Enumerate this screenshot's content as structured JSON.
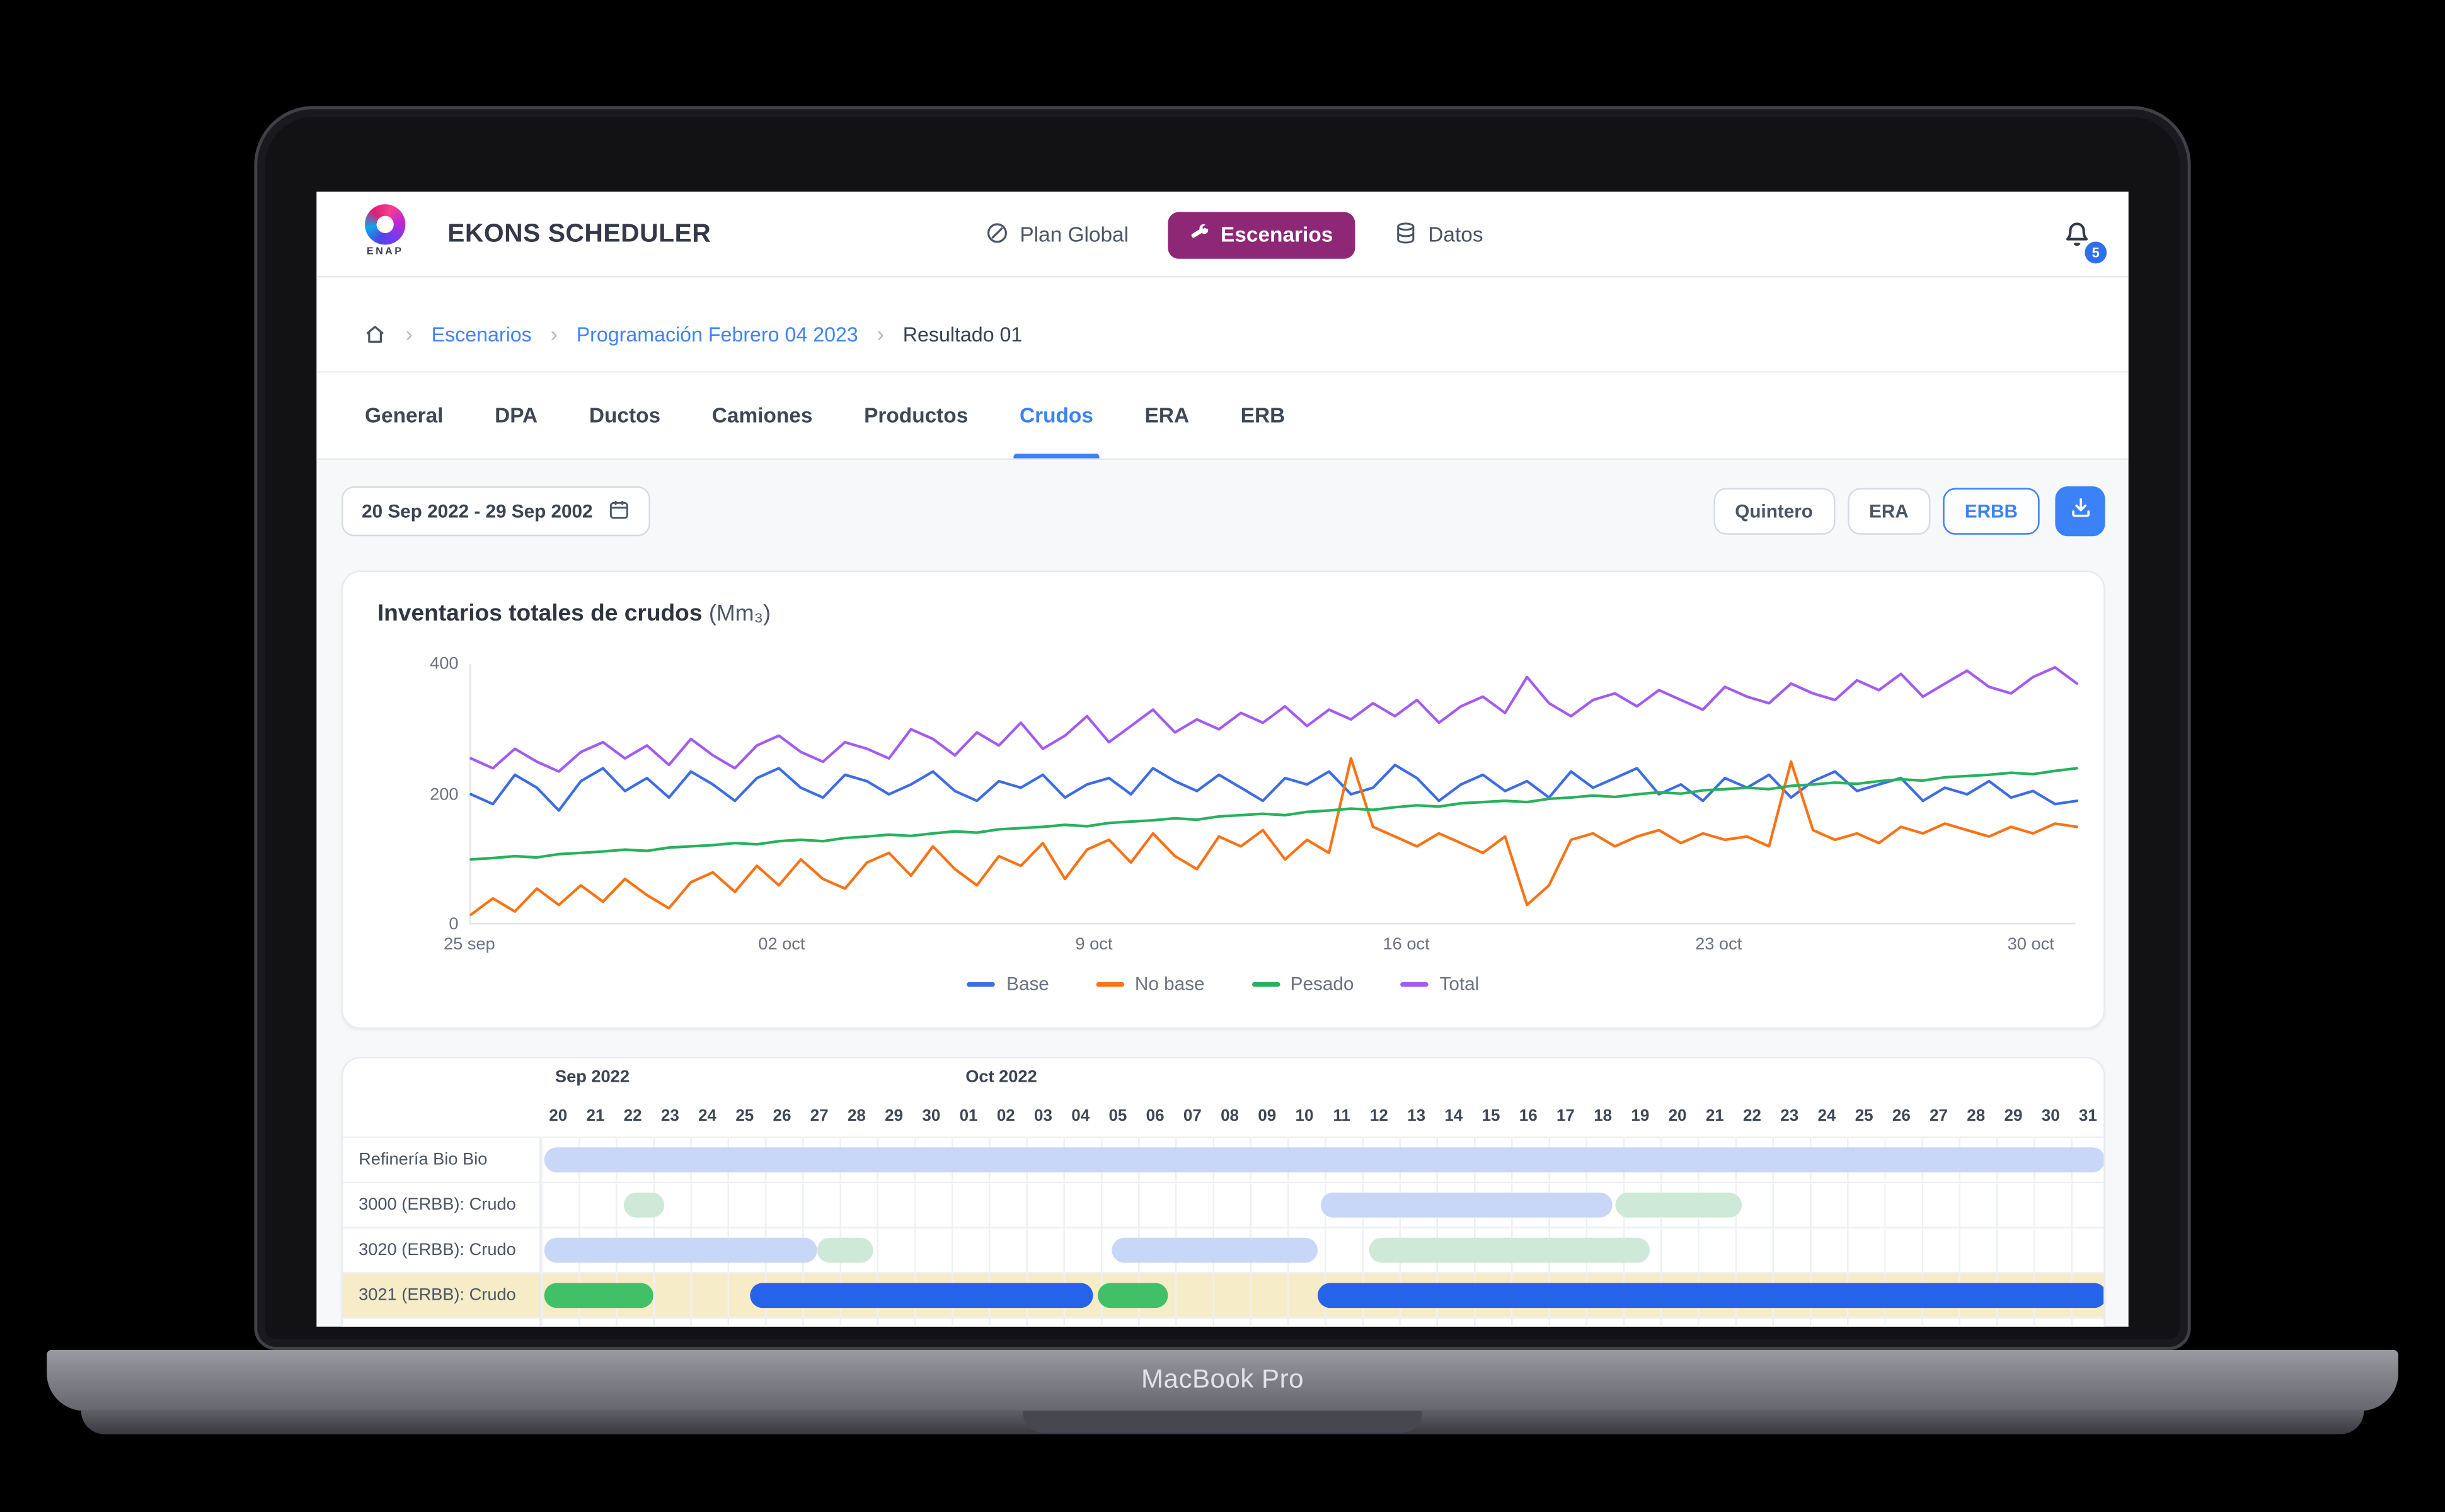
{
  "device": {
    "label": "MacBook Pro"
  },
  "navbar": {
    "logo_text": "ENAP",
    "brand": "EKONS SCHEDULER",
    "items": [
      {
        "label": "Plan Global",
        "icon": "plan-global-icon",
        "active": false
      },
      {
        "label": "Escenarios",
        "icon": "wrench-icon",
        "active": true
      },
      {
        "label": "Datos",
        "icon": "database-icon",
        "active": false
      }
    ],
    "notifications": "5"
  },
  "breadcrumb": {
    "items": [
      {
        "label": "Escenarios",
        "link": true
      },
      {
        "label": "Programación Febrero 04 2023",
        "link": true
      },
      {
        "label": "Resultado 01",
        "link": false
      }
    ]
  },
  "tabs": {
    "items": [
      "General",
      "DPA",
      "Ductos",
      "Camiones",
      "Productos",
      "Crudos",
      "ERA",
      "ERB"
    ],
    "active": "Crudos"
  },
  "toolbar": {
    "date_range": "20 Sep 2022 - 29 Sep 2002",
    "filters": [
      "Quintero",
      "ERA",
      "ERBB"
    ],
    "active_filter": "ERBB"
  },
  "chart_data": {
    "type": "line",
    "title": "Inventarios totales de crudos",
    "unit": "(Mm₃)",
    "ylim": [
      0,
      400
    ],
    "yticks": [
      400,
      200,
      0
    ],
    "x_domain_days": 36,
    "xticks": [
      {
        "label": "25 sep",
        "day": 0
      },
      {
        "label": "02 oct",
        "day": 7
      },
      {
        "label": "9 oct",
        "day": 14
      },
      {
        "label": "16 oct",
        "day": 21
      },
      {
        "label": "23 oct",
        "day": 28
      },
      {
        "label": "30 oct",
        "day": 35
      }
    ],
    "grid": false,
    "legend_position": "bottom",
    "series": [
      {
        "name": "Base",
        "color": "#3d6de4",
        "values": [
          200,
          185,
          230,
          210,
          175,
          220,
          240,
          205,
          225,
          195,
          235,
          215,
          190,
          225,
          240,
          210,
          195,
          230,
          220,
          200,
          215,
          235,
          205,
          190,
          220,
          210,
          230,
          195,
          215,
          225,
          200,
          240,
          220,
          205,
          230,
          210,
          190,
          225,
          215,
          235,
          200,
          210,
          245,
          225,
          190,
          215,
          230,
          205,
          220,
          195,
          235,
          210,
          225,
          240,
          200,
          215,
          190,
          225,
          210,
          230,
          195,
          220,
          235,
          205,
          215,
          225,
          190,
          210,
          200,
          220,
          195,
          205,
          185,
          190
        ]
      },
      {
        "name": "No base",
        "color": "#f97316",
        "values": [
          15,
          40,
          20,
          55,
          30,
          60,
          35,
          70,
          45,
          25,
          65,
          80,
          50,
          90,
          60,
          100,
          70,
          55,
          95,
          110,
          75,
          120,
          85,
          60,
          105,
          90,
          125,
          70,
          115,
          130,
          95,
          140,
          105,
          85,
          135,
          120,
          145,
          100,
          130,
          110,
          255,
          150,
          135,
          120,
          140,
          125,
          110,
          135,
          30,
          60,
          130,
          140,
          120,
          135,
          145,
          125,
          140,
          130,
          135,
          120,
          250,
          145,
          130,
          140,
          125,
          150,
          140,
          155,
          145,
          135,
          150,
          140,
          155,
          150
        ]
      },
      {
        "name": "Pesado",
        "color": "#27b15c",
        "values": [
          100,
          102,
          105,
          103,
          108,
          110,
          112,
          115,
          113,
          118,
          120,
          122,
          125,
          123,
          128,
          130,
          128,
          133,
          135,
          138,
          136,
          140,
          143,
          141,
          146,
          148,
          150,
          153,
          151,
          156,
          158,
          160,
          163,
          161,
          166,
          168,
          170,
          168,
          173,
          175,
          178,
          176,
          180,
          183,
          181,
          186,
          188,
          190,
          188,
          193,
          195,
          198,
          196,
          200,
          203,
          201,
          206,
          208,
          210,
          208,
          213,
          215,
          218,
          216,
          220,
          223,
          221,
          226,
          228,
          230,
          233,
          231,
          236,
          240
        ]
      },
      {
        "name": "Total",
        "color": "#a35bf0",
        "values": [
          255,
          240,
          270,
          250,
          235,
          265,
          280,
          255,
          275,
          245,
          285,
          260,
          240,
          275,
          290,
          265,
          250,
          280,
          270,
          255,
          300,
          285,
          260,
          295,
          275,
          310,
          270,
          290,
          320,
          280,
          305,
          330,
          295,
          315,
          300,
          325,
          310,
          335,
          305,
          330,
          315,
          340,
          320,
          345,
          310,
          335,
          350,
          325,
          380,
          340,
          320,
          345,
          355,
          335,
          360,
          345,
          330,
          365,
          350,
          340,
          370,
          355,
          345,
          375,
          360,
          385,
          350,
          370,
          390,
          365,
          355,
          380,
          395,
          370
        ]
      }
    ]
  },
  "gantt": {
    "months": [
      {
        "label": "Sep 2022",
        "days": [
          "20",
          "21",
          "22",
          "23",
          "24",
          "25",
          "26",
          "27",
          "28",
          "29",
          "30"
        ]
      },
      {
        "label": "Oct 2022",
        "days": [
          "01",
          "02",
          "03",
          "04",
          "05",
          "06",
          "07",
          "08",
          "09",
          "10",
          "11",
          "12",
          "13",
          "14",
          "15",
          "16",
          "17",
          "18",
          "19",
          "20",
          "21",
          "22",
          "23",
          "24",
          "25",
          "26",
          "27",
          "28",
          "29",
          "30",
          "31"
        ]
      }
    ],
    "bar_colors": {
      "lightblue": "#c8d6f8",
      "lightgreen": "#cfe9d8",
      "green": "#41c069",
      "blue": "#2563eb"
    },
    "row_highlight": "#f6ecc7",
    "rows": [
      {
        "label": "Refinería Bio Bio",
        "highlight": false,
        "bars": [
          {
            "start": 0.08,
            "end": 41.92,
            "color": "lightblue"
          }
        ]
      },
      {
        "label": "3000 (ERBB): Crudo",
        "highlight": false,
        "bars": [
          {
            "start": 2.2,
            "end": 3.3,
            "color": "lightgreen"
          },
          {
            "start": 20.9,
            "end": 28.7,
            "color": "lightblue"
          },
          {
            "start": 28.8,
            "end": 32.2,
            "color": "lightgreen"
          }
        ]
      },
      {
        "label": "3020 (ERBB): Crudo",
        "highlight": false,
        "bars": [
          {
            "start": 0.08,
            "end": 7.4,
            "color": "lightblue"
          },
          {
            "start": 7.4,
            "end": 8.9,
            "color": "lightgreen"
          },
          {
            "start": 15.3,
            "end": 20.8,
            "color": "lightblue"
          },
          {
            "start": 22.2,
            "end": 29.7,
            "color": "lightgreen"
          }
        ]
      },
      {
        "label": "3021 (ERBB): Crudo",
        "highlight": true,
        "bars": [
          {
            "start": 0.08,
            "end": 3.0,
            "color": "green"
          },
          {
            "start": 5.6,
            "end": 14.8,
            "color": "blue"
          },
          {
            "start": 14.9,
            "end": 16.8,
            "color": "green"
          },
          {
            "start": 20.8,
            "end": 41.97,
            "color": "blue"
          }
        ]
      }
    ]
  },
  "colors": {
    "accent_blue": "#3b82f6",
    "pill_magenta": "#8f2777",
    "badge_blue": "#2f6fed",
    "row_highlight": "#f6ecc7"
  }
}
